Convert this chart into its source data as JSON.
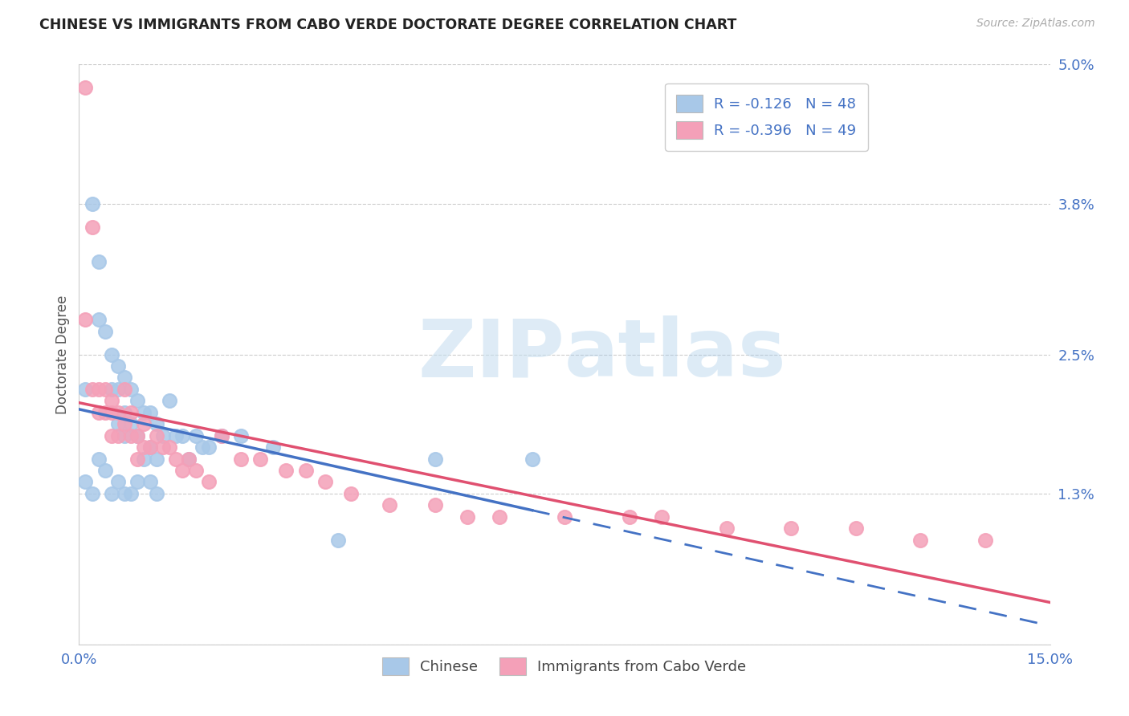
{
  "title": "CHINESE VS IMMIGRANTS FROM CABO VERDE DOCTORATE DEGREE CORRELATION CHART",
  "source": "Source: ZipAtlas.com",
  "ylabel": "Doctorate Degree",
  "x_min": 0.0,
  "x_max": 0.15,
  "y_min": 0.0,
  "y_max": 0.05,
  "y_ticks": [
    0.0,
    0.013,
    0.025,
    0.038,
    0.05
  ],
  "y_tick_labels": [
    "",
    "1.3%",
    "2.5%",
    "3.8%",
    "5.0%"
  ],
  "legend_labels": [
    "Chinese",
    "Immigrants from Cabo Verde"
  ],
  "R_chinese": -0.126,
  "N_chinese": 48,
  "R_cabo": -0.396,
  "N_cabo": 49,
  "color_chinese": "#a8c8e8",
  "color_cabo": "#f4a0b8",
  "line_color_chinese": "#4472c4",
  "line_color_cabo": "#e05070",
  "watermark_zip": "ZIP",
  "watermark_atlas": "atlas",
  "chinese_x": [
    0.001,
    0.002,
    0.003,
    0.003,
    0.004,
    0.005,
    0.005,
    0.006,
    0.006,
    0.006,
    0.007,
    0.007,
    0.007,
    0.008,
    0.008,
    0.009,
    0.009,
    0.01,
    0.011,
    0.011,
    0.012,
    0.012,
    0.013,
    0.014,
    0.015,
    0.016,
    0.017,
    0.018,
    0.019,
    0.02,
    0.022,
    0.025,
    0.03,
    0.04,
    0.055,
    0.07,
    0.001,
    0.002,
    0.003,
    0.004,
    0.005,
    0.006,
    0.007,
    0.008,
    0.009,
    0.01,
    0.011,
    0.012
  ],
  "chinese_y": [
    0.022,
    0.038,
    0.033,
    0.028,
    0.027,
    0.025,
    0.022,
    0.024,
    0.022,
    0.019,
    0.023,
    0.02,
    0.018,
    0.022,
    0.019,
    0.021,
    0.018,
    0.02,
    0.02,
    0.017,
    0.019,
    0.016,
    0.018,
    0.021,
    0.018,
    0.018,
    0.016,
    0.018,
    0.017,
    0.017,
    0.018,
    0.018,
    0.017,
    0.009,
    0.016,
    0.016,
    0.014,
    0.013,
    0.016,
    0.015,
    0.013,
    0.014,
    0.013,
    0.013,
    0.014,
    0.016,
    0.014,
    0.013
  ],
  "cabo_x": [
    0.001,
    0.001,
    0.002,
    0.002,
    0.003,
    0.003,
    0.004,
    0.004,
    0.005,
    0.005,
    0.005,
    0.006,
    0.006,
    0.007,
    0.007,
    0.008,
    0.008,
    0.009,
    0.009,
    0.01,
    0.01,
    0.011,
    0.012,
    0.013,
    0.014,
    0.015,
    0.016,
    0.017,
    0.018,
    0.02,
    0.022,
    0.025,
    0.028,
    0.032,
    0.035,
    0.038,
    0.042,
    0.048,
    0.055,
    0.06,
    0.065,
    0.075,
    0.085,
    0.09,
    0.1,
    0.11,
    0.12,
    0.13,
    0.14
  ],
  "cabo_y": [
    0.048,
    0.028,
    0.036,
    0.022,
    0.022,
    0.02,
    0.022,
    0.02,
    0.021,
    0.02,
    0.018,
    0.02,
    0.018,
    0.019,
    0.022,
    0.02,
    0.018,
    0.018,
    0.016,
    0.019,
    0.017,
    0.017,
    0.018,
    0.017,
    0.017,
    0.016,
    0.015,
    0.016,
    0.015,
    0.014,
    0.018,
    0.016,
    0.016,
    0.015,
    0.015,
    0.014,
    0.013,
    0.012,
    0.012,
    0.011,
    0.011,
    0.011,
    0.011,
    0.011,
    0.01,
    0.01,
    0.01,
    0.009,
    0.009
  ]
}
